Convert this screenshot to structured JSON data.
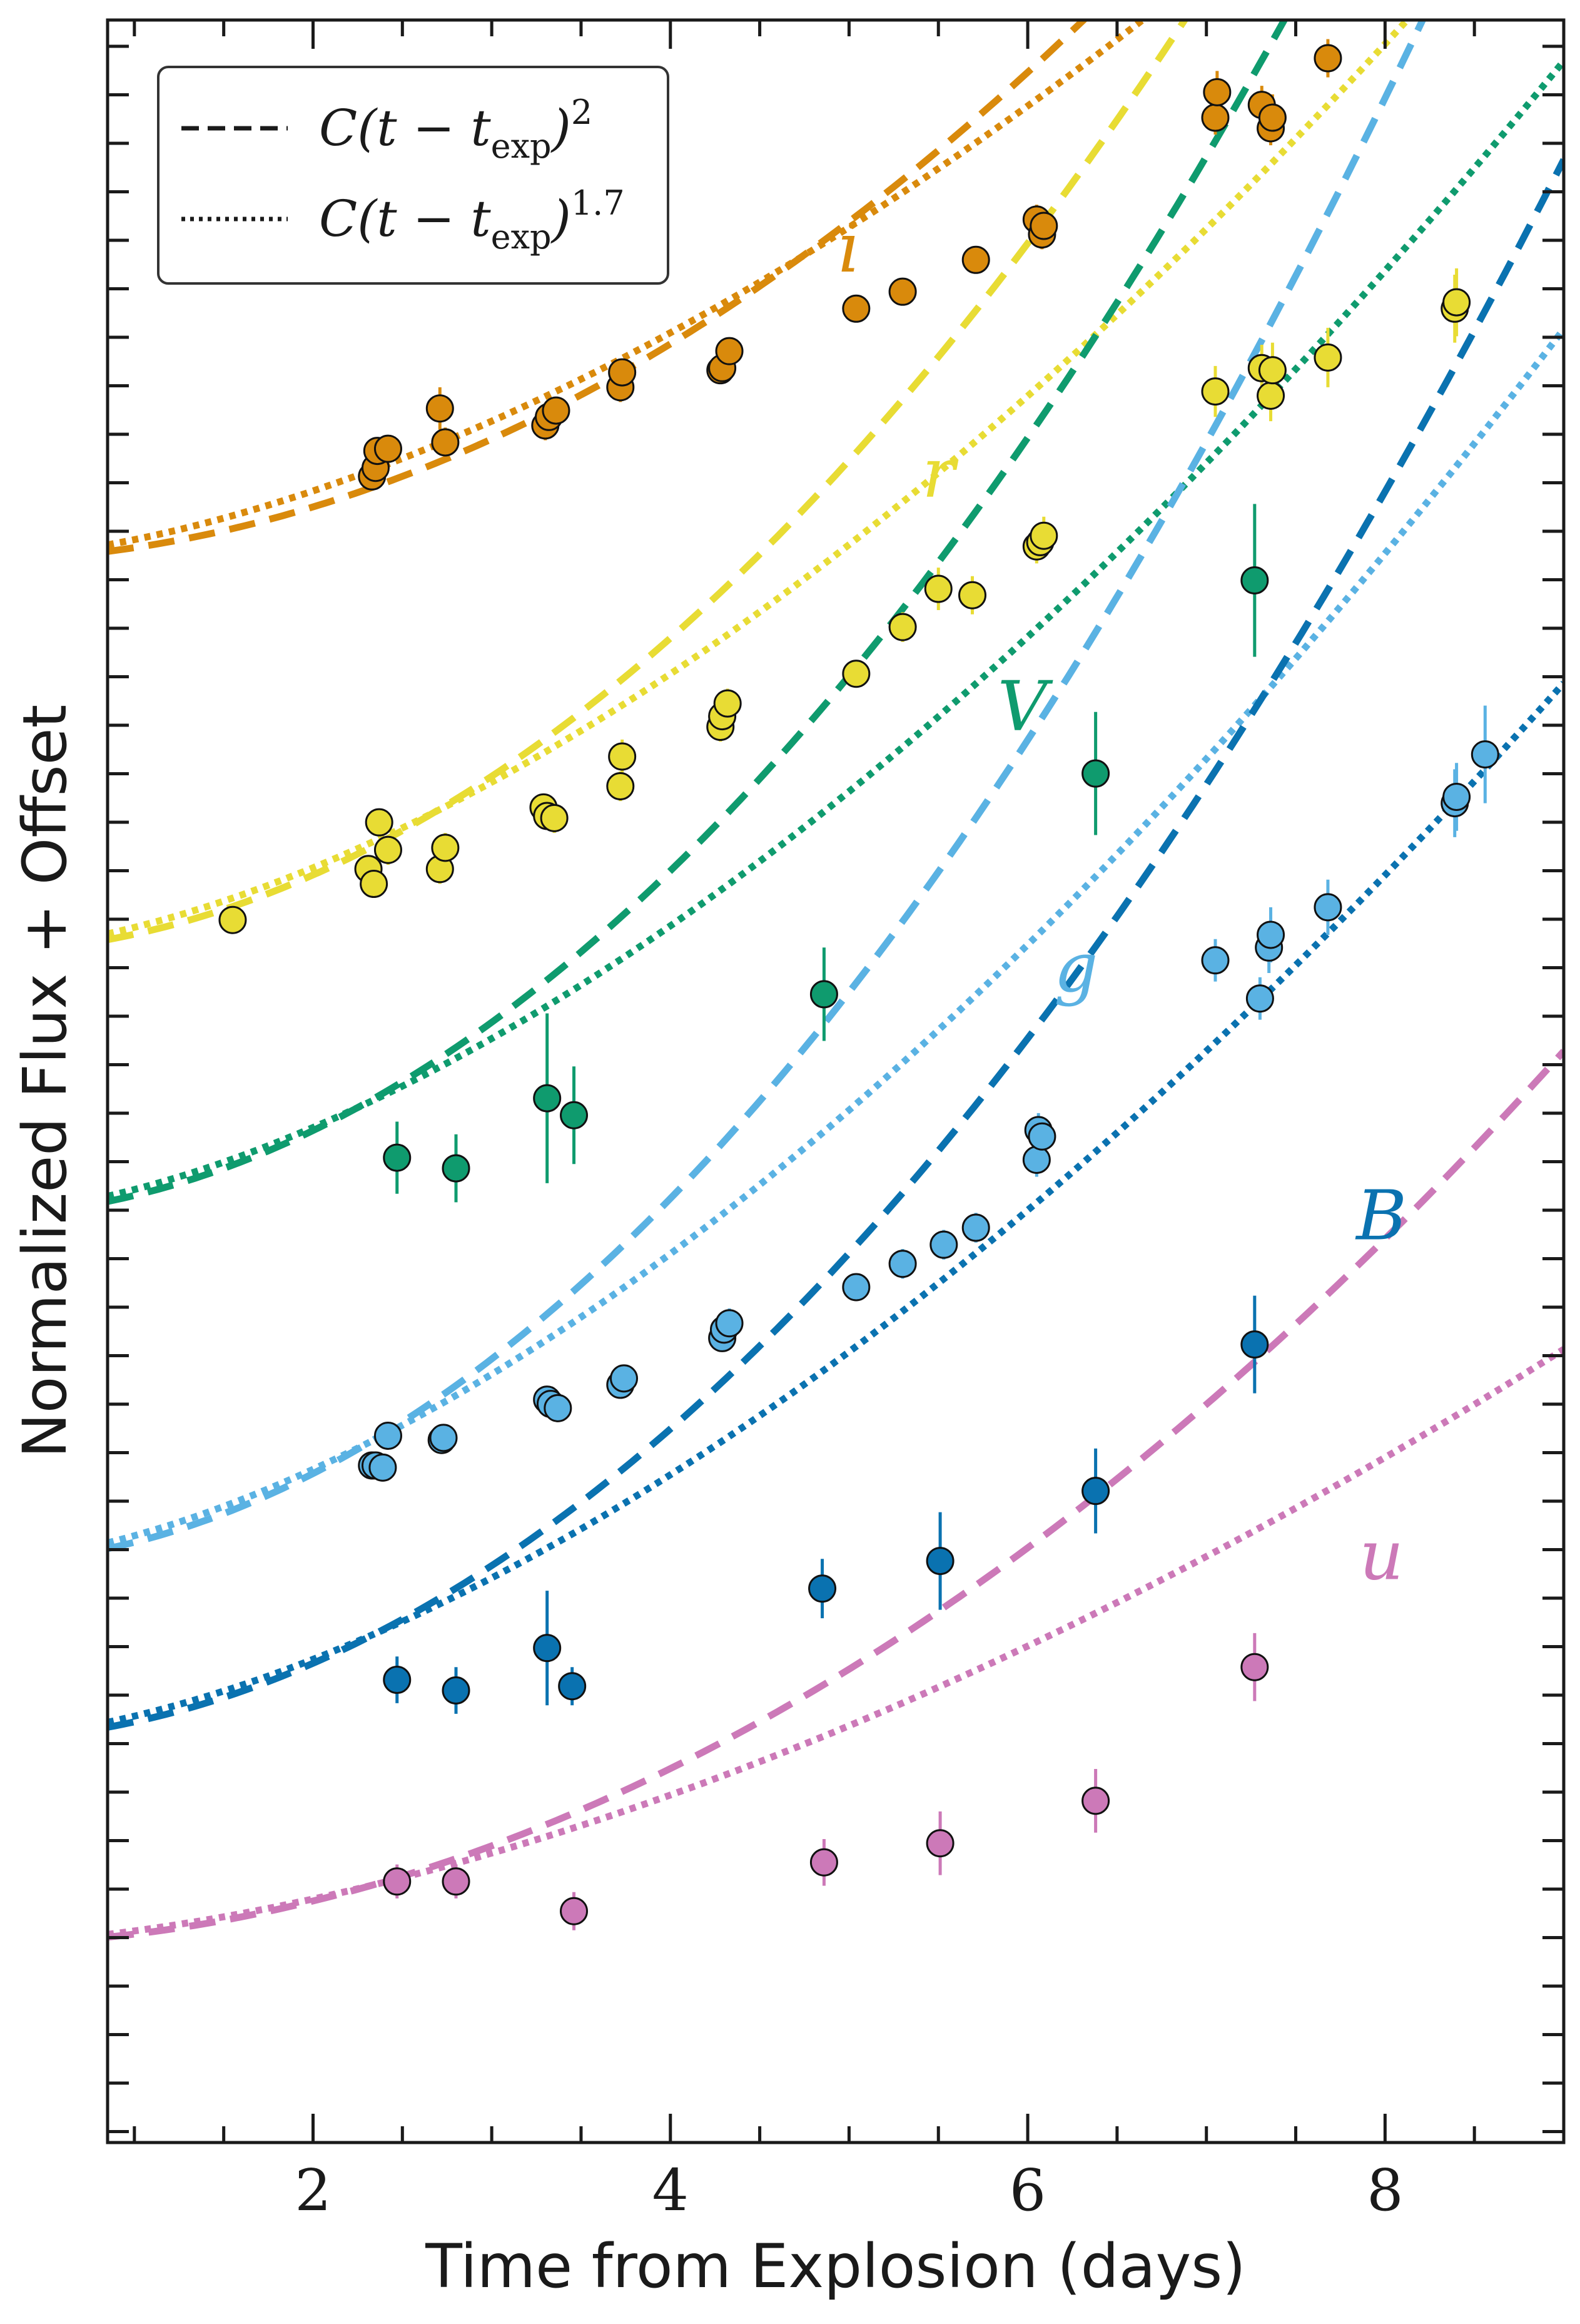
{
  "chart_data": {
    "type": "scatter",
    "xlabel": "Time from Explosion (days)",
    "ylabel": "Normalized Flux + Offset",
    "xlim": [
      0.85,
      9.0
    ],
    "ylim": [
      0.0,
      100.0
    ],
    "x_ticks": [
      "2",
      "4",
      "6",
      "8"
    ],
    "x_tick_values": [
      2,
      4,
      6,
      8
    ],
    "legend": {
      "position": "top-left",
      "entries": [
        {
          "style": "dashed",
          "text": "C(t − t",
          "sub": "exp",
          "close": ")",
          "sup": "2"
        },
        {
          "style": "dotted",
          "text": "C(t − t",
          "sub": "exp",
          "close": ")",
          "sup": "1.7"
        }
      ]
    },
    "series": [
      {
        "name": "i",
        "label": "i",
        "color": "#D98A0C",
        "label_x": 5.0,
        "label_y": 89.0,
        "offset": 74.5,
        "amp2": 0.64,
        "amp17": 1.02,
        "points": [
          {
            "x": 2.33,
            "y": 78.5,
            "err": 0.6
          },
          {
            "x": 2.35,
            "y": 78.9,
            "err": 0.6
          },
          {
            "x": 2.36,
            "y": 79.7,
            "err": 0.6
          },
          {
            "x": 2.42,
            "y": 79.8,
            "err": 0.6
          },
          {
            "x": 2.71,
            "y": 81.7,
            "err": 1.0
          },
          {
            "x": 2.74,
            "y": 80.1,
            "err": 0.7
          },
          {
            "x": 3.3,
            "y": 80.9,
            "err": 0.7
          },
          {
            "x": 3.32,
            "y": 81.3,
            "err": 0.6
          },
          {
            "x": 3.36,
            "y": 81.6,
            "err": 0.6
          },
          {
            "x": 3.72,
            "y": 82.7,
            "err": 0.7
          },
          {
            "x": 3.73,
            "y": 83.4,
            "err": 0.6
          },
          {
            "x": 4.28,
            "y": 83.5,
            "err": 0.6
          },
          {
            "x": 4.29,
            "y": 83.6,
            "err": 0.6
          },
          {
            "x": 4.33,
            "y": 84.4,
            "err": 0.6
          },
          {
            "x": 5.04,
            "y": 86.4,
            "err": 0.6
          },
          {
            "x": 5.3,
            "y": 87.2,
            "err": 0.6
          },
          {
            "x": 5.71,
            "y": 88.7,
            "err": 0.6
          },
          {
            "x": 6.05,
            "y": 90.6,
            "err": 0.7
          },
          {
            "x": 6.08,
            "y": 89.9,
            "err": 0.7
          },
          {
            "x": 6.09,
            "y": 90.3,
            "err": 0.7
          },
          {
            "x": 7.05,
            "y": 95.4,
            "err": 0.8
          },
          {
            "x": 7.06,
            "y": 96.6,
            "err": 1.0
          },
          {
            "x": 7.31,
            "y": 96.0,
            "err": 0.9
          },
          {
            "x": 7.36,
            "y": 94.9,
            "err": 0.8
          },
          {
            "x": 7.37,
            "y": 95.4,
            "err": 1.1
          },
          {
            "x": 7.68,
            "y": 98.2,
            "err": 0.9
          }
        ]
      },
      {
        "name": "r",
        "label": "r",
        "color": "#E8DC34",
        "label_x": 5.5,
        "label_y": 78.4,
        "offset": 56.0,
        "amp2": 0.93,
        "amp17": 1.25,
        "points": [
          {
            "x": 1.55,
            "y": 57.6,
            "err": 0.6
          },
          {
            "x": 2.31,
            "y": 60.0,
            "err": 0.6
          },
          {
            "x": 2.34,
            "y": 59.3,
            "err": 0.6
          },
          {
            "x": 2.37,
            "y": 62.2,
            "err": 0.6
          },
          {
            "x": 2.42,
            "y": 60.9,
            "err": 0.7
          },
          {
            "x": 2.71,
            "y": 60.0,
            "err": 0.7
          },
          {
            "x": 2.74,
            "y": 61.0,
            "err": 0.7
          },
          {
            "x": 3.29,
            "y": 62.9,
            "err": 0.6
          },
          {
            "x": 3.31,
            "y": 62.5,
            "err": 0.6
          },
          {
            "x": 3.35,
            "y": 62.4,
            "err": 0.7
          },
          {
            "x": 3.72,
            "y": 63.9,
            "err": 0.7
          },
          {
            "x": 3.73,
            "y": 65.3,
            "err": 0.8
          },
          {
            "x": 4.28,
            "y": 66.7,
            "err": 0.7
          },
          {
            "x": 4.29,
            "y": 67.2,
            "err": 0.7
          },
          {
            "x": 4.32,
            "y": 67.8,
            "err": 0.7
          },
          {
            "x": 5.04,
            "y": 69.2,
            "err": 0.6
          },
          {
            "x": 5.3,
            "y": 71.4,
            "err": 0.7
          },
          {
            "x": 5.5,
            "y": 73.2,
            "err": 1.0
          },
          {
            "x": 5.69,
            "y": 72.9,
            "err": 0.9
          },
          {
            "x": 6.05,
            "y": 75.2,
            "err": 0.8
          },
          {
            "x": 6.07,
            "y": 75.4,
            "err": 0.7
          },
          {
            "x": 6.09,
            "y": 75.7,
            "err": 0.9
          },
          {
            "x": 7.05,
            "y": 82.5,
            "err": 1.2
          },
          {
            "x": 7.31,
            "y": 83.6,
            "err": 1.1
          },
          {
            "x": 7.36,
            "y": 82.3,
            "err": 1.2
          },
          {
            "x": 7.37,
            "y": 83.5,
            "err": 1.3
          },
          {
            "x": 7.68,
            "y": 84.1,
            "err": 1.4
          },
          {
            "x": 8.39,
            "y": 86.4,
            "err": 1.6
          },
          {
            "x": 8.4,
            "y": 86.7,
            "err": 1.6
          }
        ]
      },
      {
        "name": "V",
        "label": "V",
        "color": "#0F9B6E",
        "label_x": 5.97,
        "label_y": 67.4,
        "offset": 43.6,
        "amp2": 1.02,
        "amp17": 1.3,
        "points": [
          {
            "x": 2.47,
            "y": 46.4,
            "err": 1.7
          },
          {
            "x": 2.8,
            "y": 45.9,
            "err": 1.6
          },
          {
            "x": 3.31,
            "y": 49.2,
            "err": 4.0
          },
          {
            "x": 3.46,
            "y": 48.4,
            "err": 2.3
          },
          {
            "x": 4.86,
            "y": 54.1,
            "err": 2.2
          },
          {
            "x": 6.38,
            "y": 64.5,
            "err": 2.9
          },
          {
            "x": 7.27,
            "y": 73.6,
            "err": 3.6
          }
        ]
      },
      {
        "name": "g",
        "label": "g",
        "color": "#5AB2E3",
        "label_x": 6.27,
        "label_y": 55.1,
        "offset": 27.2,
        "amp2": 1.08,
        "amp17": 1.39,
        "points": [
          {
            "x": 2.33,
            "y": 31.9,
            "err": 0.6
          },
          {
            "x": 2.35,
            "y": 31.9,
            "err": 0.6
          },
          {
            "x": 2.39,
            "y": 31.8,
            "err": 0.6
          },
          {
            "x": 2.42,
            "y": 33.3,
            "err": 0.6
          },
          {
            "x": 2.72,
            "y": 33.1,
            "err": 0.6
          },
          {
            "x": 2.73,
            "y": 33.2,
            "err": 0.6
          },
          {
            "x": 3.31,
            "y": 35.0,
            "err": 0.6
          },
          {
            "x": 3.33,
            "y": 34.8,
            "err": 0.6
          },
          {
            "x": 3.37,
            "y": 34.6,
            "err": 0.6
          },
          {
            "x": 3.72,
            "y": 35.7,
            "err": 0.6
          },
          {
            "x": 3.74,
            "y": 36.0,
            "err": 0.6
          },
          {
            "x": 4.29,
            "y": 37.9,
            "err": 0.6
          },
          {
            "x": 4.3,
            "y": 38.3,
            "err": 0.7
          },
          {
            "x": 4.33,
            "y": 38.6,
            "err": 0.7
          },
          {
            "x": 5.04,
            "y": 40.3,
            "err": 0.6
          },
          {
            "x": 5.3,
            "y": 41.4,
            "err": 0.7
          },
          {
            "x": 5.53,
            "y": 42.3,
            "err": 0.7
          },
          {
            "x": 5.71,
            "y": 43.1,
            "err": 0.7
          },
          {
            "x": 6.05,
            "y": 46.3,
            "err": 0.8
          },
          {
            "x": 6.06,
            "y": 47.7,
            "err": 0.8
          },
          {
            "x": 6.08,
            "y": 47.4,
            "err": 0.8
          },
          {
            "x": 7.05,
            "y": 55.7,
            "err": 1.0
          },
          {
            "x": 7.3,
            "y": 53.9,
            "err": 1.0
          },
          {
            "x": 7.35,
            "y": 56.3,
            "err": 1.2
          },
          {
            "x": 7.36,
            "y": 56.9,
            "err": 1.3
          },
          {
            "x": 7.68,
            "y": 58.2,
            "err": 1.3
          },
          {
            "x": 8.39,
            "y": 63.1,
            "err": 1.6
          },
          {
            "x": 8.4,
            "y": 63.4,
            "err": 1.6
          },
          {
            "x": 8.56,
            "y": 65.4,
            "err": 2.3
          }
        ]
      },
      {
        "name": "B",
        "label": "B",
        "color": "#0A72B0",
        "label_x": 7.98,
        "label_y": 43.4,
        "offset": 18.9,
        "amp2": 0.92,
        "amp17": 1.19,
        "points": [
          {
            "x": 2.47,
            "y": 21.8,
            "err": 1.1
          },
          {
            "x": 2.8,
            "y": 21.3,
            "err": 1.1
          },
          {
            "x": 3.31,
            "y": 23.3,
            "err": 2.7
          },
          {
            "x": 3.45,
            "y": 21.5,
            "err": 0.9
          },
          {
            "x": 4.85,
            "y": 26.1,
            "err": 1.4
          },
          {
            "x": 5.51,
            "y": 27.4,
            "err": 2.3
          },
          {
            "x": 6.38,
            "y": 30.7,
            "err": 2.0
          },
          {
            "x": 7.27,
            "y": 37.6,
            "err": 2.3
          }
        ]
      },
      {
        "name": "u",
        "label": "u",
        "color": "#CC79B8",
        "label_x": 7.98,
        "label_y": 27.4,
        "offset": 9.3,
        "amp2": 0.52,
        "amp17": 0.67,
        "points": [
          {
            "x": 2.47,
            "y": 12.3,
            "err": 0.8
          },
          {
            "x": 2.8,
            "y": 12.3,
            "err": 0.8
          },
          {
            "x": 3.46,
            "y": 10.9,
            "err": 0.9
          },
          {
            "x": 4.86,
            "y": 13.2,
            "err": 1.1
          },
          {
            "x": 5.51,
            "y": 14.1,
            "err": 1.5
          },
          {
            "x": 6.38,
            "y": 16.1,
            "err": 1.5
          },
          {
            "x": 7.27,
            "y": 22.4,
            "err": 1.6
          }
        ]
      }
    ]
  }
}
